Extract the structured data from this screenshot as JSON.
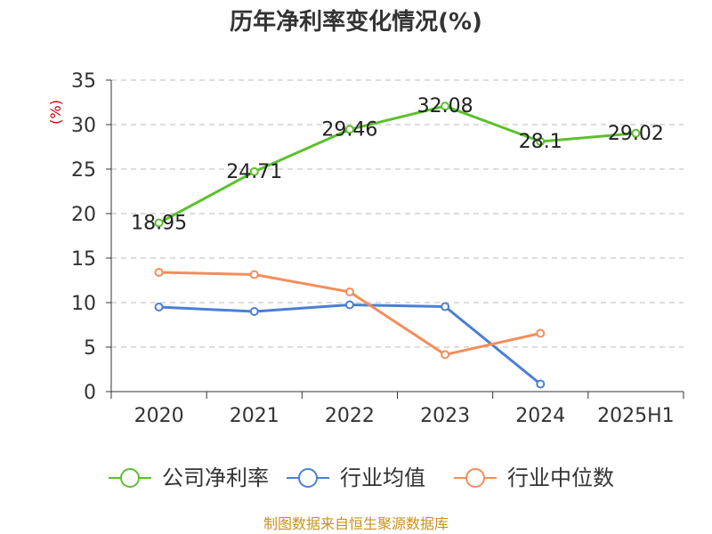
{
  "chart_data": {
    "type": "line",
    "title": "历年净利率变化情况(%)",
    "ylabel": "(%)",
    "categories": [
      "2020",
      "2021",
      "2022",
      "2023",
      "2024",
      "2025H1"
    ],
    "ylim": [
      0,
      35
    ],
    "yticks": [
      "0",
      "5",
      "10",
      "15",
      "20",
      "25",
      "30",
      "35"
    ],
    "grid": true,
    "legend_position": "bottom",
    "series": [
      {
        "name": "公司净利率",
        "color": "#5cc02e",
        "values": [
          18.95,
          24.71,
          29.46,
          32.08,
          28.1,
          29.02
        ],
        "labels": [
          "18.95",
          "24.71",
          "29.46",
          "32.08",
          "28.1",
          "29.02"
        ]
      },
      {
        "name": "行业均值",
        "color": "#4a7fd6",
        "values": [
          9.5,
          9.0,
          9.75,
          9.55,
          0.85,
          null
        ]
      },
      {
        "name": "行业中位数",
        "color": "#f58d5a",
        "values": [
          13.4,
          13.15,
          11.2,
          4.15,
          6.55,
          null
        ]
      }
    ]
  },
  "source": "制图数据来自恒生聚源数据库"
}
